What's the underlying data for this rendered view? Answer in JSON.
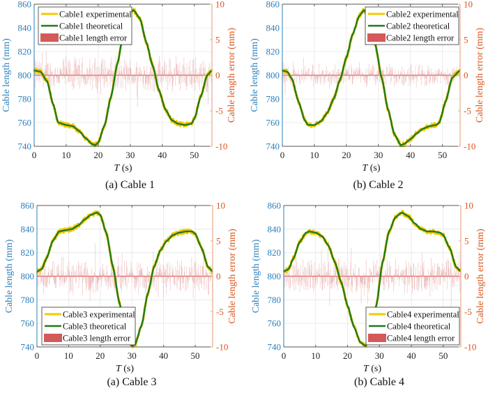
{
  "chart_data": [
    {
      "type": "line",
      "caption": "(a) Cable 1",
      "xlabel": "T (s)",
      "xlabel_italic": "T",
      "xlabel_unit": " (s)",
      "ylabel": "Cable length (mm)",
      "ylabel_right": "Cable length error (mm)",
      "xlim": [
        0,
        55.5
      ],
      "ylim": [
        740,
        860
      ],
      "ylim_right": [
        -10,
        10
      ],
      "xticks": [
        0,
        10,
        20,
        30,
        40,
        50
      ],
      "yticks": [
        740,
        760,
        780,
        800,
        820,
        840,
        860
      ],
      "yticks_right": [
        -10,
        -5,
        0,
        5,
        10
      ],
      "grid": true,
      "legend_position": "top-left",
      "legend": [
        "Cable1 experimental",
        "Cable1 theoretical",
        "Cable1 length error"
      ],
      "error_amplitude_mm": 3,
      "theoretical": {
        "x": [
          0,
          2,
          4,
          6,
          7.5,
          10,
          12,
          14,
          16,
          18,
          19,
          20,
          22,
          24,
          26,
          28,
          30,
          31,
          33,
          35,
          37,
          39,
          41,
          43,
          45,
          47,
          49,
          50,
          52,
          54,
          55.5
        ],
        "y": [
          804,
          803,
          795,
          775,
          760,
          758,
          757,
          753,
          747,
          742,
          741,
          743,
          758,
          782,
          810,
          838,
          853,
          855,
          848,
          828,
          808,
          787,
          771,
          762,
          759,
          758,
          759,
          763,
          782,
          800,
          804
        ]
      }
    },
    {
      "type": "line",
      "caption": "(b) Cable 2",
      "xlabel": "T (s)",
      "xlabel_italic": "T",
      "xlabel_unit": " (s)",
      "ylabel": "Cable length (mm)",
      "ylabel_right": "Cable length error (mm)",
      "xlim": [
        0,
        55.5
      ],
      "ylim": [
        740,
        860
      ],
      "ylim_right": [
        -10,
        10
      ],
      "xticks": [
        0,
        10,
        20,
        30,
        40,
        50
      ],
      "yticks": [
        740,
        760,
        780,
        800,
        820,
        840,
        860
      ],
      "yticks_right": [
        -10,
        -5,
        0,
        5,
        10
      ],
      "grid": true,
      "legend_position": "top-right",
      "legend": [
        "Cable2 experimental",
        "Cable2 theoretical",
        "Cable2 length error"
      ],
      "error_amplitude_mm": 1.8,
      "theoretical": {
        "x": [
          0,
          1.5,
          3,
          5,
          7,
          8,
          10,
          12,
          14,
          16,
          18,
          20,
          22,
          24,
          25.5,
          27,
          29,
          31,
          33,
          35,
          37,
          38,
          40,
          42,
          44,
          46,
          48,
          49,
          51,
          53,
          55.5
        ],
        "y": [
          804,
          803,
          797,
          778,
          762,
          758,
          758,
          761,
          768,
          780,
          796,
          815,
          835,
          850,
          855,
          849,
          826,
          798,
          771,
          750,
          741,
          742,
          746,
          751,
          755,
          757,
          758,
          760,
          778,
          798,
          804
        ]
      }
    },
    {
      "type": "line",
      "caption": "(a) Cable 3",
      "xlabel": "T (s)",
      "xlabel_italic": "T",
      "xlabel_unit": " (s)",
      "ylabel": "Cable length (mm)",
      "ylabel_right": "Cable length error (mm)",
      "xlim": [
        0,
        55.5
      ],
      "ylim": [
        740,
        860
      ],
      "ylim_right": [
        -10,
        10
      ],
      "xticks": [
        0,
        10,
        20,
        30,
        40,
        50
      ],
      "yticks": [
        740,
        760,
        780,
        800,
        820,
        840,
        860
      ],
      "yticks_right": [
        -10,
        -5,
        0,
        5,
        10
      ],
      "grid": true,
      "legend_position": "bottom-left",
      "legend": [
        "Cable3 experimental",
        "Cable3 theoretical",
        "Cable3 length error"
      ],
      "error_amplitude_mm": 3,
      "theoretical": {
        "x": [
          0,
          1.5,
          3,
          5,
          7,
          9,
          11,
          13,
          15,
          17,
          19,
          20,
          22,
          24,
          26,
          28,
          30,
          31,
          33,
          35,
          37,
          39,
          41,
          43,
          45,
          47,
          49,
          50,
          52,
          54,
          55.5
        ],
        "y": [
          804,
          806,
          815,
          830,
          838,
          839,
          840,
          843,
          848,
          852,
          854,
          852,
          836,
          808,
          778,
          752,
          741,
          742,
          758,
          785,
          808,
          822,
          830,
          835,
          837,
          838,
          838,
          836,
          824,
          808,
          804
        ]
      }
    },
    {
      "type": "line",
      "caption": "(b) Cable 4",
      "xlabel": "T (s)",
      "xlabel_italic": "T",
      "xlabel_unit": " (s)",
      "ylabel": "Cable length (mm)",
      "ylabel_right": "Cable length error (mm)",
      "xlim": [
        0,
        55.5
      ],
      "ylim": [
        740,
        860
      ],
      "ylim_right": [
        -10,
        10
      ],
      "xticks": [
        0,
        10,
        20,
        30,
        40,
        50
      ],
      "yticks": [
        740,
        760,
        780,
        800,
        820,
        840,
        860
      ],
      "yticks_right": [
        -10,
        -5,
        0,
        5,
        10
      ],
      "grid": true,
      "legend_position": "bottom-right",
      "legend": [
        "Cable4 experimental",
        "Cable4 theoretical",
        "Cable4 length error"
      ],
      "error_amplitude_mm": 3,
      "theoretical": {
        "x": [
          0,
          1.5,
          3,
          5,
          7,
          8,
          10,
          12,
          14,
          16,
          18,
          20,
          22,
          24,
          25.5,
          27,
          29,
          31,
          33,
          35,
          37,
          39,
          41,
          43,
          45,
          47,
          49,
          50,
          52,
          54,
          55.5
        ],
        "y": [
          804,
          806,
          815,
          829,
          837,
          838,
          837,
          834,
          826,
          812,
          795,
          775,
          757,
          744,
          741,
          746,
          775,
          812,
          838,
          850,
          854,
          851,
          845,
          840,
          838,
          838,
          837,
          835,
          824,
          808,
          804
        ]
      }
    }
  ],
  "colors": {
    "experimental": "#f5c800",
    "theoretical": "#1f7a1f",
    "error": "#d45a5a",
    "left_axis": "#2a7fba",
    "right_axis": "#d95319"
  }
}
